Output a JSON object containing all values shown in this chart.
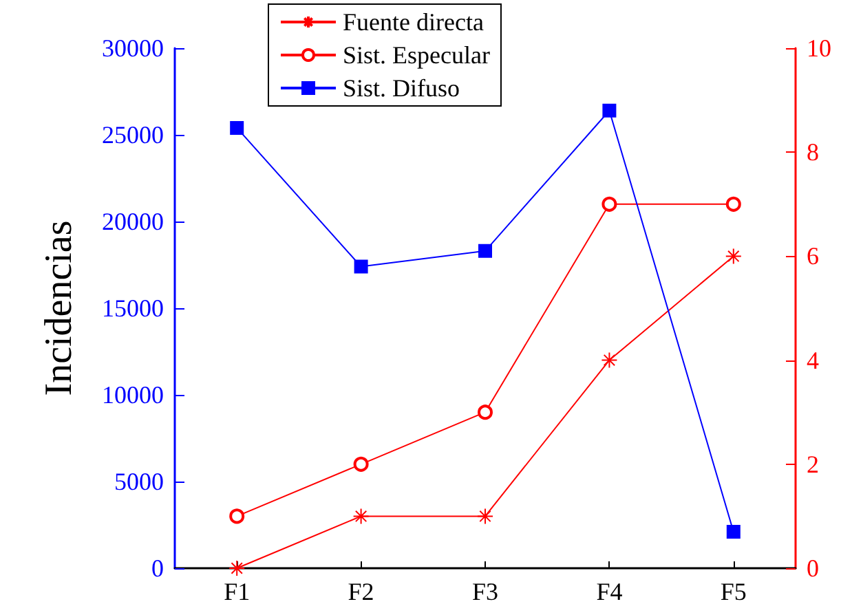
{
  "chart_data": {
    "type": "line",
    "ylabel": "Incidencias",
    "categories": [
      "F1",
      "F2",
      "F3",
      "F4",
      "F5"
    ],
    "series": [
      {
        "name": "Fuente directa",
        "color": "#ff0000",
        "axis": "y2",
        "marker": "cross",
        "values": [
          0,
          1,
          1,
          4,
          6
        ]
      },
      {
        "name": "Sist. Especular",
        "color": "#ff0000",
        "axis": "y2",
        "marker": "circle",
        "values": [
          1,
          2,
          3,
          7,
          7
        ]
      },
      {
        "name": "Sist. Difuso",
        "color": "#0000ff",
        "marker": "square",
        "values": [
          25400,
          17400,
          18300,
          26400,
          2100
        ]
      }
    ],
    "ylim": [
      0,
      30000
    ],
    "yticks": [
      0,
      5000,
      10000,
      15000,
      20000,
      25000,
      30000
    ],
    "y2lim": [
      0,
      10
    ],
    "y2ticks": [
      0,
      2,
      4,
      6,
      8,
      10
    ],
    "grid": false,
    "legend": "top"
  }
}
